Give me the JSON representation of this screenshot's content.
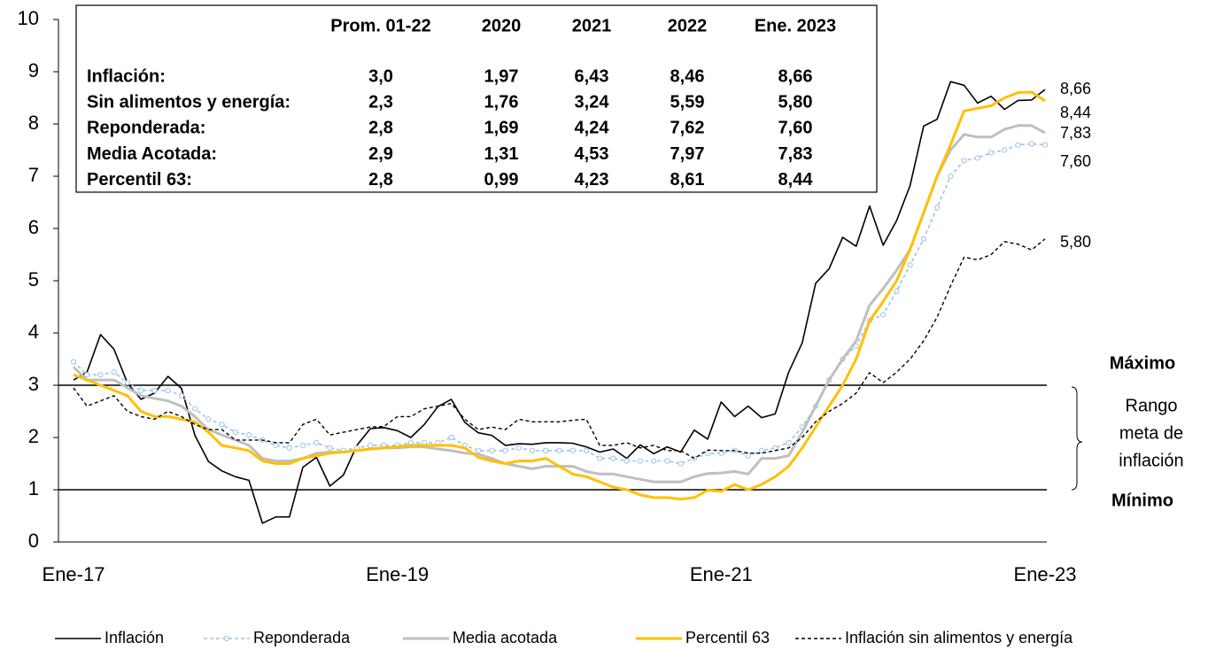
{
  "chart_data": {
    "type": "line",
    "categories": [
      "Ene-17",
      null,
      null,
      null,
      null,
      null,
      null,
      null,
      null,
      null,
      null,
      null,
      null,
      null,
      null,
      null,
      null,
      null,
      null,
      null,
      null,
      null,
      null,
      null,
      "Ene-19",
      null,
      null,
      null,
      null,
      null,
      null,
      null,
      null,
      null,
      null,
      null,
      null,
      null,
      null,
      null,
      null,
      null,
      null,
      null,
      null,
      null,
      null,
      null,
      "Ene-21",
      null,
      null,
      null,
      null,
      null,
      null,
      null,
      null,
      null,
      null,
      null,
      null,
      null,
      null,
      null,
      null,
      null,
      null,
      null,
      null,
      null,
      null,
      null,
      "Ene-23"
    ],
    "ylim": [
      0,
      10
    ],
    "yticks": [
      0,
      1,
      2,
      3,
      4,
      5,
      6,
      7,
      8,
      9,
      10
    ],
    "reference_lines": [
      3,
      1
    ],
    "annotations": {
      "max": "Máximo",
      "min": "Mínimo",
      "range": [
        "Rango",
        "meta de",
        "inflación"
      ]
    },
    "legend": "bottom",
    "series": [
      {
        "name": "Inflación",
        "color": "#000000",
        "style": "solid",
        "width": 1.6,
        "end_label": "8,66",
        "label_color": "#000000",
        "values": [
          3.1,
          3.25,
          3.97,
          3.69,
          3.04,
          2.73,
          2.85,
          3.17,
          2.94,
          2.04,
          1.54,
          1.36,
          1.25,
          1.18,
          0.36,
          0.48,
          0.48,
          1.43,
          1.62,
          1.07,
          1.28,
          1.85,
          2.17,
          2.19,
          2.13,
          2.0,
          2.25,
          2.59,
          2.73,
          2.29,
          2.09,
          2.04,
          1.85,
          1.88,
          1.87,
          1.9,
          1.9,
          1.89,
          1.82,
          1.72,
          1.78,
          1.6,
          1.86,
          1.69,
          1.82,
          1.72,
          2.14,
          1.97,
          2.68,
          2.4,
          2.6,
          2.38,
          2.45,
          3.25,
          3.81,
          4.95,
          5.23,
          5.83,
          5.66,
          6.43,
          5.68,
          6.15,
          6.82,
          7.96,
          8.09,
          8.81,
          8.74,
          8.4,
          8.53,
          8.28,
          8.45,
          8.46,
          8.66
        ]
      },
      {
        "name": "Reponderada",
        "color": "#9dc3e6",
        "style": "dashed",
        "marker": "circle",
        "width": 1.6,
        "end_label": "7,60",
        "label_color": "#5b9bd5",
        "values": [
          3.45,
          3.2,
          3.2,
          3.25,
          3.05,
          2.9,
          2.9,
          2.9,
          2.8,
          2.55,
          2.35,
          2.25,
          2.1,
          2.05,
          1.95,
          1.85,
          1.8,
          1.85,
          1.9,
          1.8,
          1.75,
          1.8,
          1.85,
          1.85,
          1.85,
          1.9,
          1.9,
          1.9,
          2.0,
          1.85,
          1.75,
          1.75,
          1.75,
          1.8,
          1.75,
          1.75,
          1.75,
          1.75,
          1.75,
          1.6,
          1.6,
          1.55,
          1.55,
          1.55,
          1.55,
          1.5,
          1.6,
          1.69,
          1.7,
          1.75,
          1.65,
          1.75,
          1.8,
          1.9,
          2.2,
          2.6,
          3.1,
          3.5,
          3.75,
          4.24,
          4.35,
          4.8,
          5.3,
          5.8,
          6.4,
          7.0,
          7.3,
          7.35,
          7.45,
          7.5,
          7.6,
          7.62,
          7.6
        ]
      },
      {
        "name": "Media acotada",
        "color": "#bfbfbf",
        "style": "solid",
        "width": 3,
        "end_label": "7,83",
        "label_color": "#a6a6a6",
        "values": [
          3.35,
          3.1,
          3.1,
          3.1,
          2.95,
          2.8,
          2.75,
          2.7,
          2.6,
          2.4,
          2.15,
          2.05,
          1.95,
          1.85,
          1.6,
          1.55,
          1.55,
          1.6,
          1.7,
          1.72,
          1.72,
          1.75,
          1.78,
          1.8,
          1.8,
          1.82,
          1.82,
          1.78,
          1.75,
          1.7,
          1.68,
          1.6,
          1.5,
          1.45,
          1.4,
          1.45,
          1.45,
          1.45,
          1.35,
          1.3,
          1.3,
          1.25,
          1.2,
          1.15,
          1.15,
          1.15,
          1.25,
          1.31,
          1.32,
          1.35,
          1.3,
          1.6,
          1.6,
          1.65,
          2.1,
          2.6,
          3.1,
          3.5,
          3.85,
          4.53,
          4.85,
          5.2,
          5.6,
          6.3,
          7.0,
          7.5,
          7.8,
          7.75,
          7.75,
          7.9,
          7.97,
          7.97,
          7.83
        ]
      },
      {
        "name": "Percentil 63",
        "color": "#ffc000",
        "style": "solid",
        "width": 3,
        "end_label": "8,44",
        "label_color": "#ffc000",
        "values": [
          3.2,
          3.1,
          3.0,
          2.9,
          2.8,
          2.5,
          2.4,
          2.4,
          2.35,
          2.3,
          2.1,
          1.85,
          1.8,
          1.75,
          1.55,
          1.5,
          1.5,
          1.6,
          1.65,
          1.7,
          1.72,
          1.75,
          1.78,
          1.8,
          1.82,
          1.85,
          1.85,
          1.85,
          1.85,
          1.8,
          1.62,
          1.55,
          1.5,
          1.55,
          1.55,
          1.6,
          1.45,
          1.3,
          1.25,
          1.15,
          1.05,
          1.0,
          0.9,
          0.85,
          0.85,
          0.82,
          0.85,
          0.99,
          0.97,
          1.1,
          1.0,
          1.1,
          1.25,
          1.45,
          1.8,
          2.2,
          2.6,
          3.0,
          3.5,
          4.23,
          4.6,
          5.0,
          5.6,
          6.3,
          7.0,
          7.6,
          8.25,
          8.3,
          8.35,
          8.5,
          8.6,
          8.61,
          8.44
        ]
      },
      {
        "name": "Inflación sin alimentos y energía",
        "color": "#000000",
        "style": "dashed",
        "width": 1.4,
        "end_label": "5,80",
        "label_color": "#000000",
        "values": [
          2.95,
          2.6,
          2.7,
          2.8,
          2.5,
          2.4,
          2.35,
          2.5,
          2.4,
          2.25,
          2.15,
          2.15,
          1.95,
          1.95,
          1.95,
          1.9,
          1.9,
          2.25,
          2.35,
          2.05,
          2.1,
          2.15,
          2.2,
          2.21,
          2.4,
          2.4,
          2.55,
          2.6,
          2.65,
          2.35,
          2.15,
          2.2,
          2.15,
          2.35,
          2.3,
          2.3,
          2.3,
          2.33,
          2.35,
          1.85,
          1.85,
          1.9,
          1.8,
          1.85,
          1.75,
          1.75,
          1.6,
          1.76,
          1.75,
          1.75,
          1.7,
          1.7,
          1.75,
          1.8,
          2.0,
          2.3,
          2.5,
          2.65,
          2.85,
          3.24,
          3.05,
          3.25,
          3.5,
          3.85,
          4.3,
          4.9,
          5.45,
          5.4,
          5.5,
          5.75,
          5.7,
          5.59,
          5.8
        ]
      }
    ],
    "table": {
      "columns": [
        "Prom. 01-22",
        "2020",
        "2021",
        "2022",
        "Ene. 2023"
      ],
      "rows": [
        [
          "Inflación:",
          "3,0",
          "1,97",
          "6,43",
          "8,46",
          "8,66"
        ],
        [
          "Sin alimentos y energía:",
          "2,3",
          "1,76",
          "3,24",
          "5,59",
          "5,80"
        ],
        [
          "Reponderada:",
          "2,8",
          "1,69",
          "4,24",
          "7,62",
          "7,60"
        ],
        [
          "Media Acotada:",
          "2,9",
          "1,31",
          "4,53",
          "7,97",
          "7,83"
        ],
        [
          "Percentil 63:",
          "2,8",
          "0,99",
          "4,23",
          "8,61",
          "8,44"
        ]
      ]
    }
  }
}
